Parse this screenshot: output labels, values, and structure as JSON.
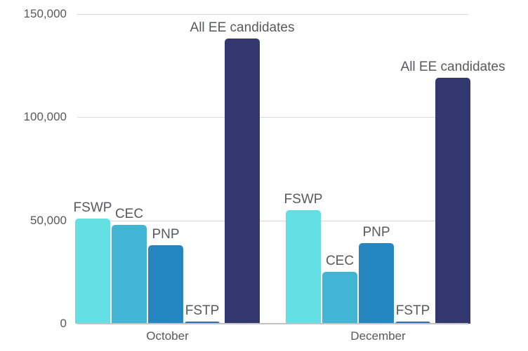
{
  "chart_data": {
    "type": "bar",
    "title": "",
    "xlabel": "",
    "ylabel": "",
    "categories": [
      "October",
      "December"
    ],
    "series": [
      {
        "name": "FSWP",
        "values": [
          51000,
          55000
        ],
        "color": "#63DFE3"
      },
      {
        "name": "CEC",
        "values": [
          48000,
          25000
        ],
        "color": "#41B5D3"
      },
      {
        "name": "PNP",
        "values": [
          38000,
          39000
        ],
        "color": "#2686BF"
      },
      {
        "name": "FSTP",
        "values": [
          1000,
          1000
        ],
        "color": "#2B6FB8"
      },
      {
        "name": "All EE candidates",
        "values": [
          138000,
          119000
        ],
        "color": "#333770"
      }
    ],
    "ylim": [
      0,
      150000
    ],
    "yticks": [
      {
        "value": 0,
        "label": "0"
      },
      {
        "value": 50000,
        "label": "50,000"
      },
      {
        "value": 100000,
        "label": "100,000"
      },
      {
        "value": 150000,
        "label": "150,000"
      }
    ],
    "grid": true,
    "legend_position": "none",
    "bar_label_placement": "above each bar"
  },
  "colors": {
    "text": "#58595B",
    "gridline": "#D9D9D9",
    "axis_line": "#C2C2C2",
    "background": "#FFFFFF"
  }
}
